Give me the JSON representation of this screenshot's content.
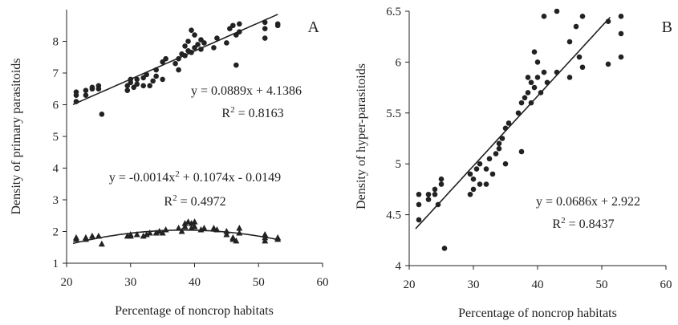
{
  "chart_data": [
    {
      "panel_label": "A",
      "type": "scatter",
      "xlabel": "Percentage of noncrop habitats",
      "ylabel": "Density of primary parasitoids",
      "xlim": [
        20,
        60
      ],
      "ylim": [
        1,
        9
      ],
      "xticks": [
        20,
        30,
        40,
        50,
        60
      ],
      "yticks": [
        1,
        2,
        3,
        4,
        5,
        6,
        7,
        8
      ],
      "grid": false,
      "series": [
        {
          "marker": "circle",
          "points": [
            [
              21.5,
              6.1
            ],
            [
              21.5,
              6.3
            ],
            [
              21.5,
              6.4
            ],
            [
              23.0,
              6.3
            ],
            [
              23.0,
              6.45
            ],
            [
              24.0,
              6.5
            ],
            [
              24.0,
              6.55
            ],
            [
              25.0,
              6.6
            ],
            [
              25.0,
              6.5
            ],
            [
              25.5,
              5.7
            ],
            [
              29.5,
              6.45
            ],
            [
              29.5,
              6.6
            ],
            [
              30.0,
              6.7
            ],
            [
              30.0,
              6.8
            ],
            [
              30.5,
              6.55
            ],
            [
              31.0,
              6.65
            ],
            [
              31.0,
              6.8
            ],
            [
              32.0,
              6.6
            ],
            [
              32.0,
              6.85
            ],
            [
              32.5,
              6.95
            ],
            [
              33.0,
              6.6
            ],
            [
              33.5,
              6.75
            ],
            [
              34.0,
              6.9
            ],
            [
              34.0,
              7.1
            ],
            [
              35.0,
              6.8
            ],
            [
              35.0,
              7.35
            ],
            [
              35.5,
              7.45
            ],
            [
              37.0,
              7.3
            ],
            [
              37.5,
              7.1
            ],
            [
              37.5,
              7.45
            ],
            [
              38.0,
              7.6
            ],
            [
              38.5,
              7.55
            ],
            [
              38.5,
              7.85
            ],
            [
              39.0,
              7.7
            ],
            [
              39.0,
              8.0
            ],
            [
              39.5,
              8.35
            ],
            [
              39.5,
              7.65
            ],
            [
              40.0,
              8.2
            ],
            [
              40.0,
              7.8
            ],
            [
              40.5,
              7.9
            ],
            [
              41.0,
              7.75
            ],
            [
              41.0,
              8.05
            ],
            [
              41.5,
              7.95
            ],
            [
              43.0,
              7.8
            ],
            [
              43.5,
              8.1
            ],
            [
              45.0,
              7.95
            ],
            [
              45.5,
              8.4
            ],
            [
              46.0,
              8.5
            ],
            [
              46.5,
              8.2
            ],
            [
              46.5,
              7.25
            ],
            [
              47.0,
              8.55
            ],
            [
              47.0,
              8.3
            ],
            [
              51.0,
              8.6
            ],
            [
              51.0,
              8.4
            ],
            [
              51.0,
              8.1
            ],
            [
              53.0,
              8.55
            ],
            [
              53.0,
              8.5
            ]
          ]
        },
        {
          "marker": "triangle",
          "points": [
            [
              21.5,
              1.75
            ],
            [
              21.5,
              1.8
            ],
            [
              23.0,
              1.75
            ],
            [
              23.0,
              1.8
            ],
            [
              24.0,
              1.85
            ],
            [
              25.0,
              1.85
            ],
            [
              25.5,
              1.6
            ],
            [
              29.5,
              1.85
            ],
            [
              30.0,
              1.9
            ],
            [
              30.0,
              1.85
            ],
            [
              31.0,
              1.9
            ],
            [
              32.0,
              1.85
            ],
            [
              32.5,
              1.9
            ],
            [
              33.0,
              1.95
            ],
            [
              34.0,
              1.95
            ],
            [
              34.5,
              2.0
            ],
            [
              35.0,
              1.95
            ],
            [
              35.5,
              2.05
            ],
            [
              37.5,
              2.1
            ],
            [
              38.0,
              2.0
            ],
            [
              38.5,
              2.25
            ],
            [
              38.5,
              2.15
            ],
            [
              39.0,
              2.3
            ],
            [
              39.5,
              2.25
            ],
            [
              39.5,
              2.1
            ],
            [
              40.0,
              2.3
            ],
            [
              40.0,
              2.15
            ],
            [
              41.0,
              2.05
            ],
            [
              41.5,
              2.1
            ],
            [
              43.0,
              2.1
            ],
            [
              43.5,
              2.05
            ],
            [
              45.0,
              2.0
            ],
            [
              45.0,
              1.9
            ],
            [
              46.0,
              1.8
            ],
            [
              46.0,
              1.75
            ],
            [
              46.5,
              1.7
            ],
            [
              47.0,
              2.1
            ],
            [
              47.0,
              1.95
            ],
            [
              51.0,
              1.9
            ],
            [
              51.0,
              1.8
            ],
            [
              51.0,
              1.7
            ],
            [
              53.0,
              1.75
            ],
            [
              53.0,
              1.8
            ]
          ]
        }
      ],
      "fits": [
        {
          "kind": "linear",
          "coef": [
            4.1386,
            0.0889
          ],
          "x_range": [
            21,
            53
          ]
        },
        {
          "kind": "quadratic",
          "coef": [
            -0.0149,
            0.1074,
            -0.0014
          ],
          "x_range": [
            21,
            53
          ]
        }
      ],
      "annotations": [
        {
          "lines": [
            "y = 0.0889x + 4.1386",
            "R2 = 0.8163"
          ]
        },
        {
          "lines": [
            "y = -0.0014x2 + 0.1074x - 0.0149",
            "R2 = 0.4972"
          ]
        }
      ]
    },
    {
      "panel_label": "B",
      "type": "scatter",
      "xlabel": "Percentage of noncrop habitats",
      "ylabel": "Density of hyper-parasitoids",
      "xlim": [
        20,
        60
      ],
      "ylim": [
        4,
        6.5
      ],
      "xticks": [
        20,
        30,
        40,
        50,
        60
      ],
      "yticks": [
        4,
        4.5,
        5,
        5.5,
        6,
        6.5
      ],
      "grid": false,
      "series": [
        {
          "marker": "circle",
          "points": [
            [
              21.5,
              4.45
            ],
            [
              21.5,
              4.6
            ],
            [
              21.5,
              4.7
            ],
            [
              23.0,
              4.65
            ],
            [
              23.0,
              4.7
            ],
            [
              24.0,
              4.7
            ],
            [
              24.0,
              4.75
            ],
            [
              25.0,
              4.8
            ],
            [
              25.0,
              4.85
            ],
            [
              25.5,
              4.17
            ],
            [
              24.5,
              4.6
            ],
            [
              29.5,
              4.7
            ],
            [
              29.5,
              4.9
            ],
            [
              30.0,
              4.75
            ],
            [
              30.0,
              4.85
            ],
            [
              30.5,
              4.95
            ],
            [
              31.0,
              4.8
            ],
            [
              31.0,
              5.0
            ],
            [
              32.0,
              4.8
            ],
            [
              32.0,
              4.95
            ],
            [
              32.5,
              5.05
            ],
            [
              33.0,
              4.9
            ],
            [
              33.5,
              5.1
            ],
            [
              34.0,
              5.15
            ],
            [
              34.0,
              5.2
            ],
            [
              34.5,
              5.25
            ],
            [
              35.0,
              5.35
            ],
            [
              35.0,
              5.0
            ],
            [
              35.5,
              5.4
            ],
            [
              37.0,
              5.5
            ],
            [
              37.5,
              5.6
            ],
            [
              37.5,
              5.12
            ],
            [
              38.0,
              5.65
            ],
            [
              38.5,
              5.7
            ],
            [
              38.5,
              5.85
            ],
            [
              39.0,
              5.8
            ],
            [
              39.0,
              5.6
            ],
            [
              39.5,
              5.75
            ],
            [
              39.5,
              6.1
            ],
            [
              40.0,
              5.85
            ],
            [
              40.0,
              6.0
            ],
            [
              40.5,
              5.7
            ],
            [
              41.0,
              5.9
            ],
            [
              41.0,
              6.45
            ],
            [
              41.5,
              5.8
            ],
            [
              43.0,
              6.5
            ],
            [
              43.0,
              5.9
            ],
            [
              45.0,
              6.2
            ],
            [
              45.0,
              5.85
            ],
            [
              46.0,
              6.35
            ],
            [
              46.5,
              6.05
            ],
            [
              47.0,
              6.45
            ],
            [
              47.0,
              5.95
            ],
            [
              51.0,
              6.4
            ],
            [
              51.0,
              5.98
            ],
            [
              53.0,
              6.45
            ],
            [
              53.0,
              6.28
            ],
            [
              53.0,
              6.05
            ]
          ]
        }
      ],
      "fits": [
        {
          "kind": "linear",
          "coef": [
            2.922,
            0.0686
          ],
          "x_range": [
            21,
            51.3
          ]
        }
      ],
      "annotations": [
        {
          "lines": [
            "y = 0.0686x + 2.922",
            "R2 = 0.8437"
          ]
        }
      ]
    }
  ]
}
